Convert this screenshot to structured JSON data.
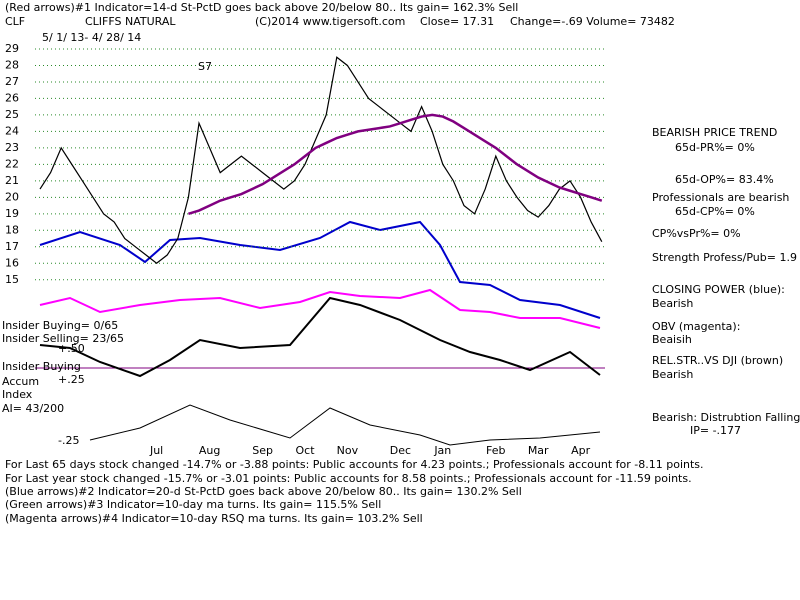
{
  "header": {
    "indicator": "(Red arrows)#1 Indicator=14-d St-PctD goes back above 20/below 80.. Its gain= 162.3% Sell",
    "symbol": "CLF",
    "copyright": "(C)2014 www.tigersoft.com",
    "close": "Close=  17.31",
    "change": "Change=-.69 Volume=  73482",
    "date_range": "5/ 1/ 13- 4/ 28/ 14"
  },
  "chart_data": {
    "type": "line",
    "title": "CLIFFS NATURAL",
    "categories": [
      null,
      null,
      null,
      null,
      null,
      null,
      null,
      null,
      null,
      null,
      null,
      "Jul",
      null,
      null,
      null,
      null,
      "Aug",
      null,
      null,
      null,
      null,
      "Sep",
      null,
      null,
      null,
      "Oct",
      null,
      null,
      null,
      "Nov",
      null,
      null,
      null,
      null,
      "Dec",
      null,
      null,
      null,
      "Jan",
      null,
      null,
      null,
      null,
      "Feb",
      null,
      null,
      null,
      "Mar",
      null,
      null,
      null,
      "Apr",
      null,
      null
    ],
    "series": [
      {
        "color": "#000000",
        "values": [
          20.5,
          21.5,
          23,
          22,
          21,
          20,
          19,
          18.5,
          17.5,
          17,
          16.5,
          16,
          16.5,
          17.5,
          20,
          24.5,
          23,
          21.5,
          22,
          22.5,
          22,
          21.5,
          21,
          20.5,
          21,
          22,
          23.5,
          25,
          28.5,
          28,
          27,
          26,
          25.5,
          25,
          24.5,
          24,
          25.5,
          24,
          22,
          21,
          19.5,
          19,
          20.5,
          22.5,
          21,
          20,
          19.2,
          18.8,
          19.5,
          20.5,
          21,
          20,
          18.5,
          17.31
        ]
      },
      {
        "color": "#800080",
        "values": [
          null,
          null,
          null,
          null,
          null,
          null,
          null,
          null,
          null,
          null,
          null,
          null,
          null,
          null,
          19,
          19.2,
          19.5,
          19.8,
          20,
          20.2,
          20.5,
          20.8,
          21.2,
          21.6,
          22,
          22.5,
          23,
          23.3,
          23.6,
          23.8,
          24,
          24.1,
          24.2,
          24.3,
          24.5,
          24.7,
          24.9,
          25,
          24.9,
          24.6,
          24.2,
          23.8,
          23.4,
          23,
          22.5,
          22,
          21.6,
          21.2,
          20.9,
          20.6,
          20.4,
          20.2,
          20,
          19.8
        ]
      }
    ],
    "ylim": [
      14.5,
      30
    ],
    "yticks": [
      15,
      16,
      17,
      18,
      19,
      20,
      21,
      22,
      23,
      24,
      25,
      26,
      27,
      28,
      29
    ],
    "grid": true,
    "annotations": [
      "S7"
    ]
  },
  "side_panel": [
    "BEARISH PRICE TREND",
    "65d-PR%= 0%",
    "65d-OP%= 83.4%",
    "Professionals are bearish",
    "65d-CP%= 0%",
    "CP%vsPr%=  0%",
    "Strength Profess/Pub= 1.9",
    "CLOSING POWER (blue):",
    "Bearish",
    "OBV (magenta):",
    "Beaisih",
    "REL.STR..VS DJI (brown)",
    "Bearish",
    "Bearish:  Distrubtion Falling",
    "IP= -.177"
  ],
  "indicator_labels": [
    "Insider Buying= 0/65",
    "Insider Selling= 23/65",
    "+.50",
    "Insider Buying",
    "Accum",
    "+.25",
    "Index",
    "AI= 43/200",
    "-.25"
  ],
  "footer": [
    "For Last 65 days stock changed -14.7% or -3.88 points:  Public accounts for  4.23 points.;   Professionals account for -8.11 points.",
    "For Last year stock changed -15.7% or -3.01 points:  Public accounts for  8.58 points.;  Professionals account for -11.59 points.",
    "(Blue arrows)#2 Indicator=20-d St-PctD goes back above 20/below 80.. Its gain= 130.2% Sell",
    "(Green arrows)#3 Indicator=10-day ma turns.  Its gain= 115.5% Sell",
    "(Magenta arrows)#4 Indicator=10-day RSQ ma turns.  Its gain= 103.2% Sell"
  ]
}
